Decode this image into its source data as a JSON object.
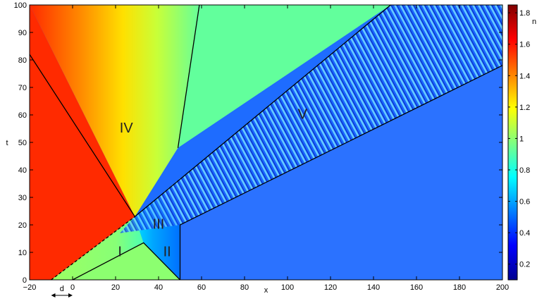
{
  "chart_data": {
    "type": "heatmap",
    "xlabel": "x",
    "ylabel": "t",
    "colorbar_label": "n",
    "xlim": [
      -20,
      200
    ],
    "ylim": [
      0,
      100
    ],
    "x_ticks": [
      -20,
      0,
      20,
      40,
      60,
      80,
      100,
      120,
      140,
      160,
      180,
      200
    ],
    "y_ticks": [
      0,
      10,
      20,
      30,
      40,
      50,
      60,
      70,
      80,
      90,
      100
    ],
    "colorbar": {
      "range": [
        0.1,
        1.85
      ],
      "ticks": [
        0.2,
        0.4,
        0.6,
        0.8,
        1,
        1.2,
        1.4,
        1.6,
        1.8
      ],
      "colormap": "jet"
    },
    "regions": [
      {
        "label": "I",
        "x": 22,
        "t": 10,
        "value": 0.95
      },
      {
        "label": "II",
        "x": 44,
        "t": 10,
        "value": 0.6
      },
      {
        "label": "III",
        "x": 40,
        "t": 20,
        "value": 1.0
      },
      {
        "label": "IV",
        "x": 25,
        "t": 55,
        "value": 1.3
      },
      {
        "label": "V",
        "x": 107,
        "t": 60,
        "value": 0.45
      }
    ],
    "boundary_lines": [
      {
        "style": "solid",
        "points": [
          [
            -20,
            82
          ],
          [
            29,
            23
          ]
        ]
      },
      {
        "style": "solid",
        "points": [
          [
            0,
            0
          ],
          [
            33,
            13.5
          ],
          [
            50,
            0
          ]
        ]
      },
      {
        "style": "solid",
        "points": [
          [
            49,
            48
          ],
          [
            59,
            100
          ]
        ]
      },
      {
        "style": "solid",
        "points": [
          [
            29,
            23
          ],
          [
            148,
            100
          ]
        ]
      },
      {
        "style": "dashed",
        "points": [
          [
            -10,
            0
          ],
          [
            29,
            23
          ]
        ]
      },
      {
        "style": "solid",
        "points": [
          [
            50,
            0
          ],
          [
            50,
            20
          ],
          [
            200,
            78
          ]
        ]
      }
    ],
    "annotation": {
      "label": "d",
      "from_x": -10,
      "to_x": 0
    }
  }
}
